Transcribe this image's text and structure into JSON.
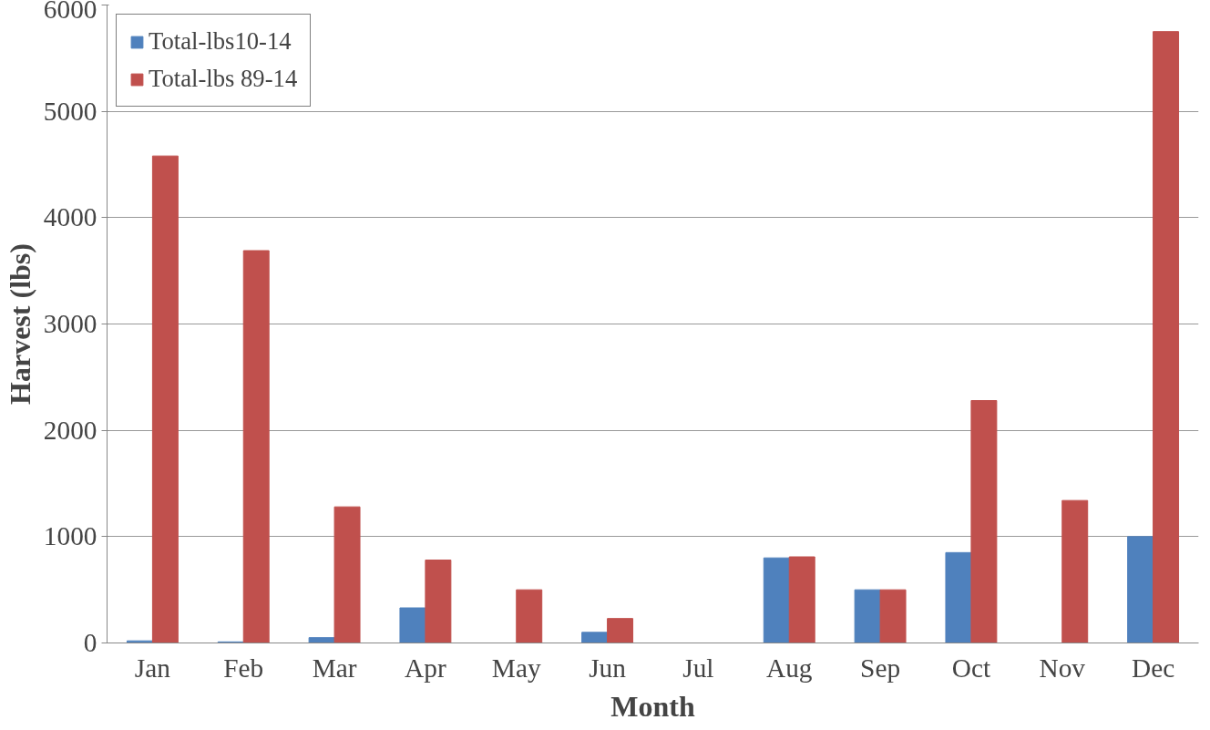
{
  "chart_data": {
    "type": "bar",
    "xlabel": "Month",
    "ylabel": "Harvest (lbs)",
    "categories": [
      "Jan",
      "Feb",
      "Mar",
      "Apr",
      "May",
      "Jun",
      "Jul",
      "Aug",
      "Sep",
      "Oct",
      "Nov",
      "Dec"
    ],
    "series": [
      {
        "name": "Total-lbs10-14",
        "color": "#4f81bd",
        "values": [
          20,
          10,
          50,
          330,
          0,
          100,
          0,
          800,
          500,
          850,
          0,
          1000
        ]
      },
      {
        "name": "Total-lbs 89-14",
        "color": "#c0504d",
        "values": [
          4580,
          3690,
          1280,
          780,
          500,
          230,
          0,
          810,
          500,
          2280,
          1340,
          5750
        ]
      }
    ],
    "ylim": [
      0,
      6000
    ],
    "yticks": [
      0,
      1000,
      2000,
      3000,
      4000,
      5000,
      6000
    ],
    "grid": "y",
    "legend": "top left"
  }
}
